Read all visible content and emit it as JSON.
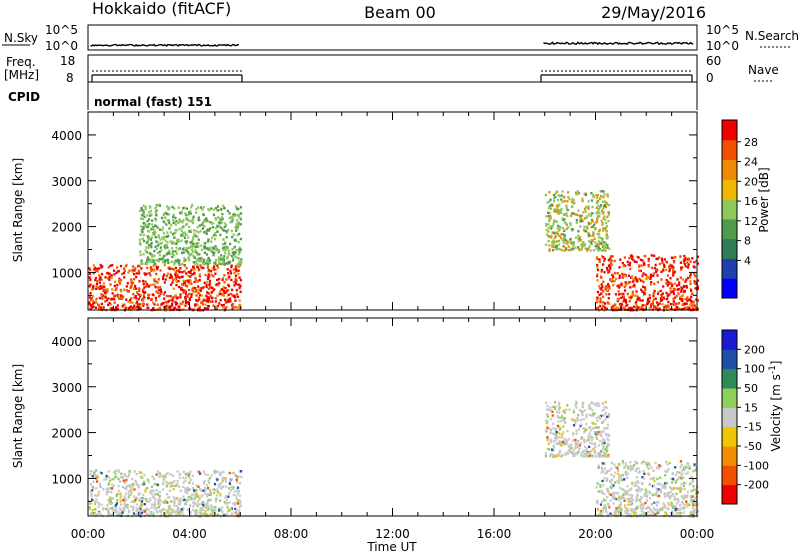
{
  "header": {
    "radar": "Hokkaido (fitACF)",
    "beam": "Beam 00",
    "date": "29/May/2016"
  },
  "panels": {
    "nsky_label": "N.Sky",
    "nsky_ticks": [
      "10^5",
      "10^0"
    ],
    "nsearch_ticks": [
      "10^5",
      "10^0"
    ],
    "nsearch_label": "N.Search",
    "freq_label_1": "Freq.",
    "freq_label_2": "[MHz]",
    "freq_ticks": [
      "18",
      "8"
    ],
    "nave_ticks": [
      "60",
      "0"
    ],
    "nave_label": "Nave",
    "cpid_label": "CPID",
    "cpid_text": "normal (fast) 151"
  },
  "colorbars": {
    "power": {
      "label": "Power [dB]",
      "ticks": [
        "28",
        "24",
        "20",
        "16",
        "12",
        "8",
        "4"
      ],
      "colors": [
        "#0000ff",
        "#1f3fae",
        "#2e7d57",
        "#4f9a4f",
        "#8fc85a",
        "#f0b800",
        "#f08a00",
        "#f05000",
        "#ee0000"
      ]
    },
    "velocity": {
      "label_main": "Velocity [m s",
      "label_sup": "-1",
      "label_end": "]",
      "ticks": [
        "200",
        "100",
        "50",
        "15",
        "-15",
        "-50",
        "-100",
        "-200"
      ],
      "colors": [
        "#ee0000",
        "#f05000",
        "#f09000",
        "#f0c400",
        "#c8c8c8",
        "#8ed05a",
        "#2e8b57",
        "#1f4fa8",
        "#1a1ad0"
      ]
    }
  },
  "chart_data": [
    {
      "type": "heatmap",
      "title": "",
      "xlabel": "",
      "ylabel": "Slant Range [km]",
      "ylim": [
        180,
        4500
      ],
      "yticks": [
        "4000",
        "3000",
        "2000",
        "1000"
      ],
      "xticks": [
        "00:00",
        "04:00",
        "08:00",
        "12:00",
        "16:00",
        "20:00",
        "00:00"
      ],
      "quantity": "Power",
      "units": "dB",
      "scatter_regions": [
        {
          "t_start": "00:00",
          "t_end": "06:00",
          "range_min_km": 200,
          "range_max_km": 1200,
          "dominant": "red/orange"
        },
        {
          "t_start": "02:00",
          "t_end": "06:00",
          "range_min_km": 1200,
          "range_max_km": 2500,
          "dominant": "green"
        },
        {
          "t_start": "18:00",
          "t_end": "20:30",
          "range_min_km": 1500,
          "range_max_km": 2800,
          "dominant": "green/orange"
        },
        {
          "t_start": "20:00",
          "t_end": "24:00",
          "range_min_km": 200,
          "range_max_km": 1400,
          "dominant": "red/orange"
        }
      ]
    },
    {
      "type": "heatmap",
      "title": "",
      "xlabel": "Time UT",
      "ylabel": "Slant Range [km]",
      "ylim": [
        180,
        4500
      ],
      "yticks": [
        "4000",
        "3000",
        "2000",
        "1000"
      ],
      "xticks": [
        "00:00",
        "04:00",
        "08:00",
        "12:00",
        "16:00",
        "20:00",
        "00:00"
      ],
      "quantity": "Velocity",
      "units": "m/s",
      "scatter_regions": [
        {
          "t_start": "00:00",
          "t_end": "06:00",
          "range_min_km": 200,
          "range_max_km": 1200,
          "dominant": "gray (ground scatter)"
        },
        {
          "t_start": "18:00",
          "t_end": "20:30",
          "range_min_km": 1500,
          "range_max_km": 2700,
          "dominant": "gray/green"
        },
        {
          "t_start": "20:00",
          "t_end": "24:00",
          "range_min_km": 200,
          "range_max_km": 1400,
          "dominant": "gray"
        }
      ]
    }
  ]
}
